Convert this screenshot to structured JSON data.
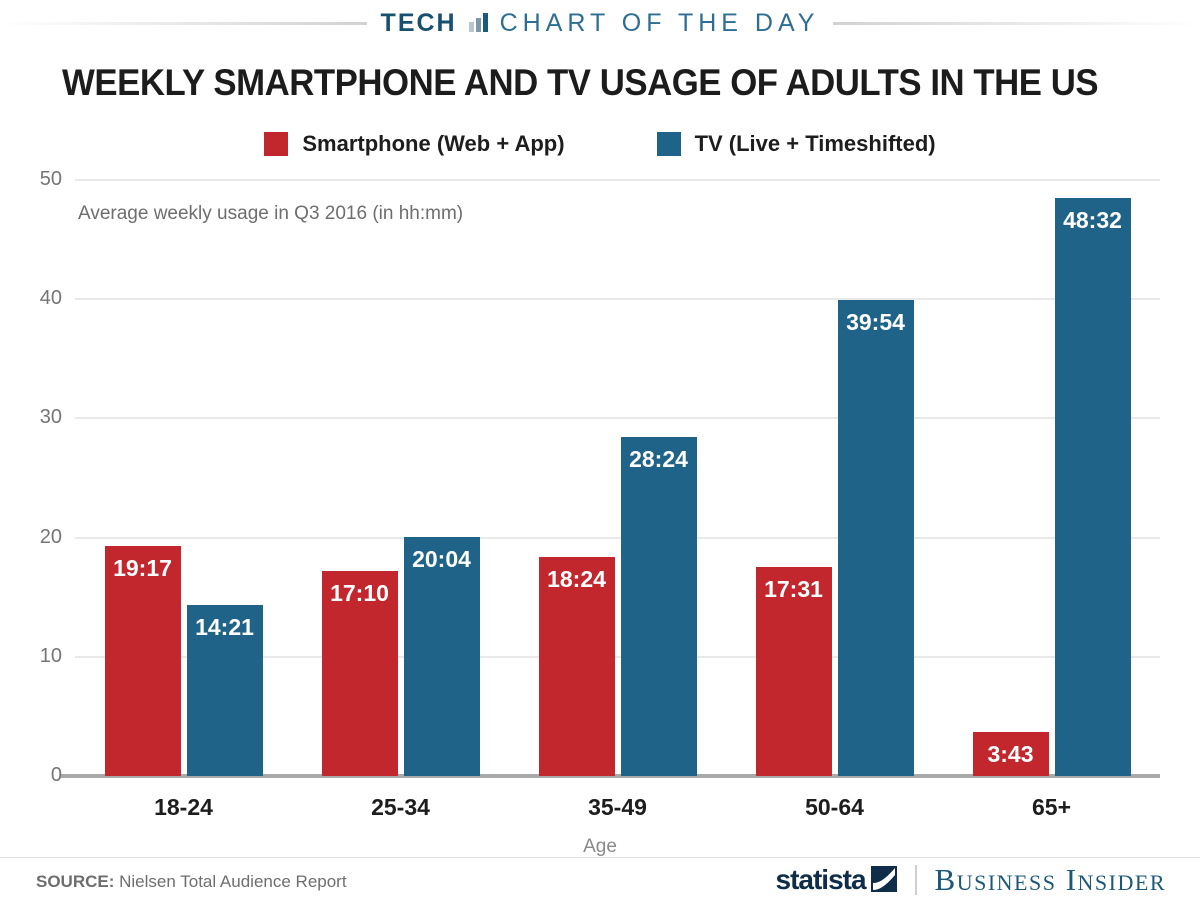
{
  "header": {
    "kicker_primary": "TECH",
    "kicker_secondary": "CHART OF THE DAY",
    "icon": "bar-chart-icon"
  },
  "title": "WEEKLY SMARTPHONE AND TV USAGE OF ADULTS IN THE US",
  "chart_data": {
    "type": "bar",
    "title": "WEEKLY SMARTPHONE AND TV USAGE OF ADULTS IN THE US",
    "subtitle": "Average weekly usage in Q3 2016 (in hh:mm)",
    "categories": [
      "18-24",
      "25-34",
      "35-49",
      "50-64",
      "65+"
    ],
    "series": [
      {
        "name": "Smartphone (Web + App)",
        "color": "#c1272d",
        "labels": [
          "19:17",
          "17:10",
          "18:24",
          "17:31",
          "3:43"
        ],
        "values": [
          19.28,
          17.17,
          18.4,
          17.52,
          3.72
        ]
      },
      {
        "name": "TV (Live + Timeshifted)",
        "color": "#1f6488",
        "labels": [
          "14:21",
          "20:04",
          "28:24",
          "39:54",
          "48:32"
        ],
        "values": [
          14.35,
          20.07,
          28.4,
          39.9,
          48.53
        ]
      }
    ],
    "xlabel": "Age",
    "ylabel": "",
    "ylim": [
      0,
      50
    ],
    "yticks": [
      0,
      10,
      20,
      30,
      40,
      50
    ],
    "grid": true,
    "legend_position": "top",
    "colors": {
      "grid": "#e9e9e9",
      "baseline": "#a9a9a9",
      "tick_text": "#757575",
      "value_text": "#ffffff"
    }
  },
  "footer": {
    "source_label": "SOURCE:",
    "source_text": " Nielsen Total Audience Report",
    "statista_label": "statista",
    "business_insider": "Business Insider"
  }
}
